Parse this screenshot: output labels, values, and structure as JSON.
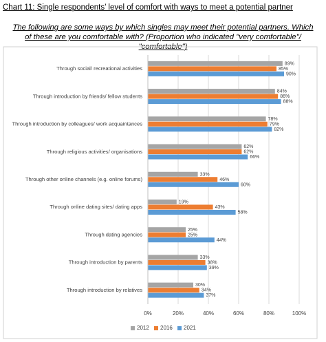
{
  "chart_data": {
    "type": "hbar",
    "title": "Chart 11: Single respondents’ level of comfort with ways to meet a potential partner",
    "subtitle": "The following are some ways by which singles may meet their potential partners. Which of these are you comfortable with? (Proportion who indicated \"very comfortable\"/ \"comfortable\")",
    "categories": [
      "Through social/ recreational activities",
      "Through introduction by friends/ fellow students",
      "Through introduction by colleagues/ work acquaintances",
      "Through religious activities/ organisations",
      "Through other online channels (e.g. online forums)",
      "Through online dating sites/ dating apps",
      "Through dating agencies",
      "Through introduction by parents",
      "Through introduction by relatives"
    ],
    "series": [
      {
        "name": "2012",
        "color": "#a5a5a5",
        "values": [
          89,
          84,
          78,
          62,
          33,
          19,
          25,
          33,
          30
        ],
        "value_labels": [
          "89%",
          "84%",
          "78%",
          "62%",
          "33%",
          "19%",
          "25%",
          "33%",
          "30%"
        ]
      },
      {
        "name": "2016",
        "color": "#ed7d31",
        "values": [
          85,
          86,
          79,
          62,
          46,
          43,
          25,
          38,
          34
        ],
        "value_labels": [
          "85%",
          "86%",
          "79%",
          "62%",
          "46%",
          "43%",
          "25%",
          "38%",
          "34%"
        ]
      },
      {
        "name": "2021",
        "color": "#5b9bd5",
        "values": [
          90,
          88,
          82,
          66,
          60,
          58,
          44,
          39,
          37
        ],
        "value_labels": [
          "90%",
          "88%",
          "82%",
          "66%",
          "60%",
          "58%",
          "44%",
          "39%",
          "37%"
        ]
      }
    ],
    "xlim": [
      0,
      100
    ],
    "xticks": [
      {
        "value": 0,
        "label": "0%"
      },
      {
        "value": 20,
        "label": "20%"
      },
      {
        "value": 40,
        "label": "40%"
      },
      {
        "value": 60,
        "label": "60%"
      },
      {
        "value": 80,
        "label": "80%"
      },
      {
        "value": 100,
        "label": "100%"
      }
    ],
    "grid": true,
    "legend": "bottom"
  }
}
